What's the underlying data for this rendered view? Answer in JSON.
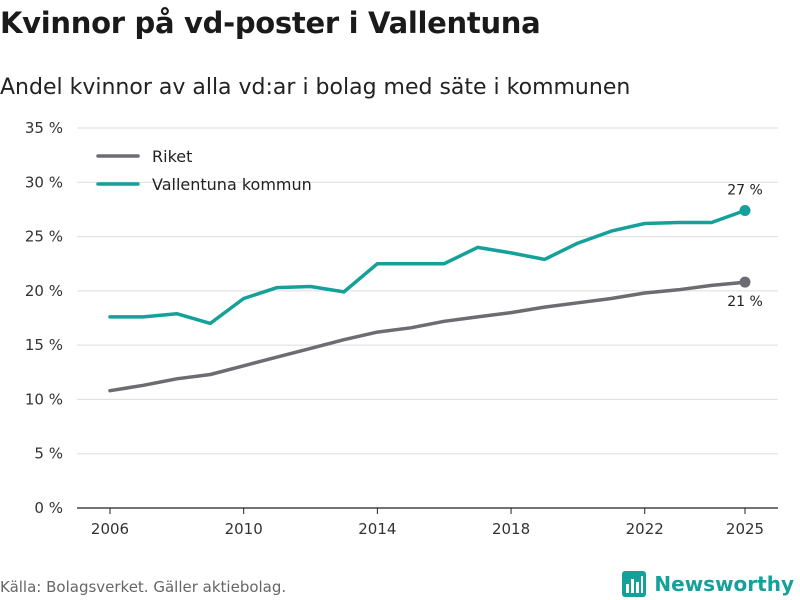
{
  "chart_data": {
    "type": "line",
    "title": "Kvinnor på vd-poster i Vallentuna",
    "subtitle": "Andel kvinnor av alla vd:ar i bolag med säte i kommunen",
    "x": [
      2006,
      2007,
      2008,
      2009,
      2010,
      2011,
      2012,
      2013,
      2014,
      2015,
      2016,
      2017,
      2018,
      2019,
      2020,
      2021,
      2022,
      2023,
      2024,
      2025
    ],
    "series": [
      {
        "name": "Riket",
        "color": "#6d6c72",
        "values": [
          10.8,
          11.3,
          11.9,
          12.3,
          13.1,
          13.9,
          14.7,
          15.5,
          16.2,
          16.6,
          17.2,
          17.6,
          18.0,
          18.5,
          18.9,
          19.3,
          19.8,
          20.1,
          20.5,
          20.8
        ],
        "end_label": "21 %"
      },
      {
        "name": "Vallentuna kommun",
        "color": "#15a09a",
        "values": [
          17.6,
          17.6,
          17.9,
          17.0,
          19.3,
          20.3,
          20.4,
          19.9,
          22.5,
          22.5,
          22.5,
          24.0,
          23.5,
          22.9,
          24.4,
          25.5,
          26.2,
          26.3,
          26.3,
          27.4
        ],
        "end_label": "27 %"
      }
    ],
    "xticks": [
      2006,
      2010,
      2014,
      2018,
      2022,
      2025
    ],
    "yticks": [
      0,
      5,
      10,
      15,
      20,
      25,
      30,
      35
    ],
    "ytick_labels": [
      "0 %",
      "5 %",
      "10 %",
      "15 %",
      "20 %",
      "25 %",
      "30 %",
      "35 %"
    ],
    "ylim": [
      0,
      35
    ],
    "xlim": [
      2006,
      2025
    ],
    "xlabel": "",
    "ylabel": "",
    "legend_position": "top-left",
    "grid": true
  },
  "footer": {
    "source": "Källa: Bolagsverket. Gäller aktiebolag.",
    "brand": "Newsworthy",
    "brand_color": "#15a09a"
  }
}
